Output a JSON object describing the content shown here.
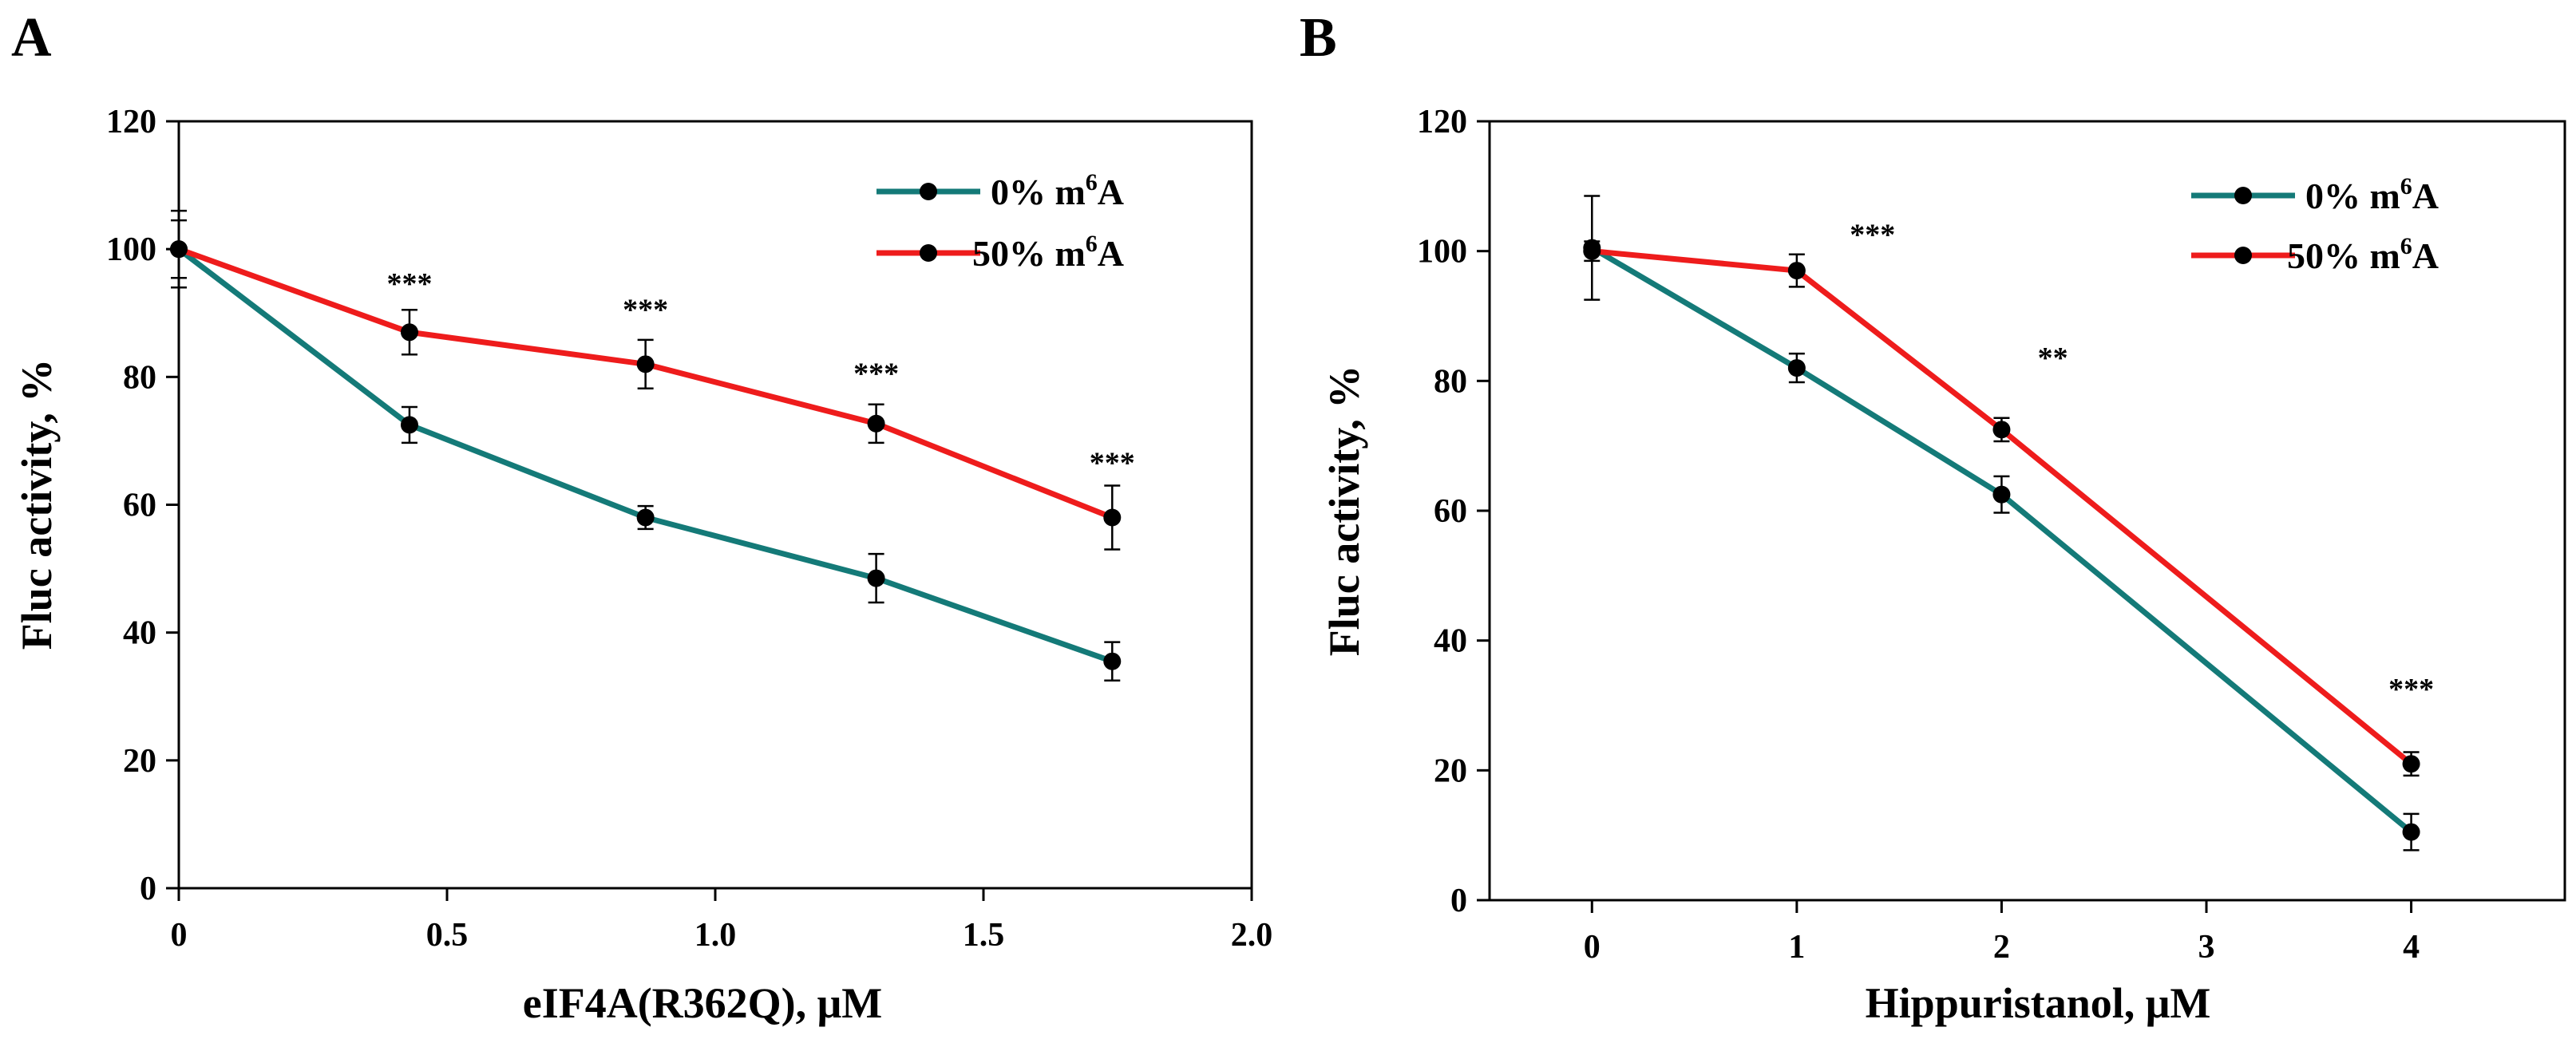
{
  "colors": {
    "teal": "#147a78",
    "red": "#ee1c1c",
    "marker": "#000000"
  },
  "chart_data": [
    {
      "panel": "A",
      "type": "line",
      "xlabel": "eIF4A(R362Q), μM",
      "ylabel": "Fluc activity, %",
      "xlim": [
        0,
        2.0
      ],
      "ylim": [
        0,
        120
      ],
      "xticks": [
        0,
        0.5,
        1.0,
        1.5,
        2.0
      ],
      "xtick_labels": [
        "0",
        "0.5",
        "1.0",
        "1.5",
        "2.0"
      ],
      "yticks": [
        0,
        20,
        40,
        60,
        80,
        100,
        120
      ],
      "ytick_labels": [
        "0",
        "20",
        "40",
        "60",
        "80",
        "100",
        "120"
      ],
      "legend_position": "top-right",
      "series": [
        {
          "name": "0% m6A",
          "legend_prefix": "0% m",
          "legend_sup": "6",
          "legend_suffix": "A",
          "color": "#147a78",
          "x": [
            0,
            0.43,
            0.87,
            1.3,
            1.74
          ],
          "y": [
            100,
            72.5,
            58,
            48.5,
            35.5
          ],
          "err": [
            6,
            2.8,
            1.8,
            3.8,
            3
          ]
        },
        {
          "name": "50% m6A",
          "legend_prefix": "50% m",
          "legend_sup": "6",
          "legend_suffix": "A",
          "color": "#ee1c1c",
          "x": [
            0,
            0.43,
            0.87,
            1.3,
            1.74
          ],
          "y": [
            100,
            87,
            82,
            72.7,
            58
          ],
          "err": [
            4.5,
            3.5,
            3.8,
            3,
            5
          ]
        }
      ],
      "significance": [
        {
          "x": 0.43,
          "y": 93,
          "label": "***"
        },
        {
          "x": 0.87,
          "y": 89,
          "label": "***"
        },
        {
          "x": 1.3,
          "y": 79,
          "label": "***"
        },
        {
          "x": 1.74,
          "y": 65,
          "label": "***"
        }
      ]
    },
    {
      "panel": "B",
      "type": "line",
      "xlabel": "Hippuristanol, μM",
      "ylabel": "Fluc activity, %",
      "xlim": [
        -0.5,
        4.75
      ],
      "ylim": [
        0,
        120
      ],
      "xticks": [
        0,
        1,
        2,
        3,
        4
      ],
      "xtick_labels": [
        "0",
        "1",
        "2",
        "3",
        "4"
      ],
      "yticks": [
        0,
        20,
        40,
        60,
        80,
        100,
        120
      ],
      "ytick_labels": [
        "0",
        "20",
        "40",
        "60",
        "80",
        "100",
        "120"
      ],
      "legend_position": "top-right",
      "series": [
        {
          "name": "0% m6A",
          "legend_prefix": "0% m",
          "legend_sup": "6",
          "legend_suffix": "A",
          "color": "#147a78",
          "x": [
            0,
            1,
            2,
            4
          ],
          "y": [
            100.5,
            82,
            62.5,
            10.5
          ],
          "err": [
            8,
            2.2,
            2.8,
            2.8
          ]
        },
        {
          "name": "50% m6A",
          "legend_prefix": "50% m",
          "legend_sup": "6",
          "legend_suffix": "A",
          "color": "#ee1c1c",
          "x": [
            0,
            1,
            2,
            4
          ],
          "y": [
            100,
            97,
            72.5,
            21
          ],
          "err": [
            1.5,
            2.5,
            1.8,
            1.8
          ]
        }
      ],
      "significance": [
        {
          "x": 1.37,
          "y": 101,
          "label": "***"
        },
        {
          "x": 2.25,
          "y": 82,
          "label": "**"
        },
        {
          "x": 4.0,
          "y": 31,
          "label": "***"
        }
      ]
    }
  ]
}
